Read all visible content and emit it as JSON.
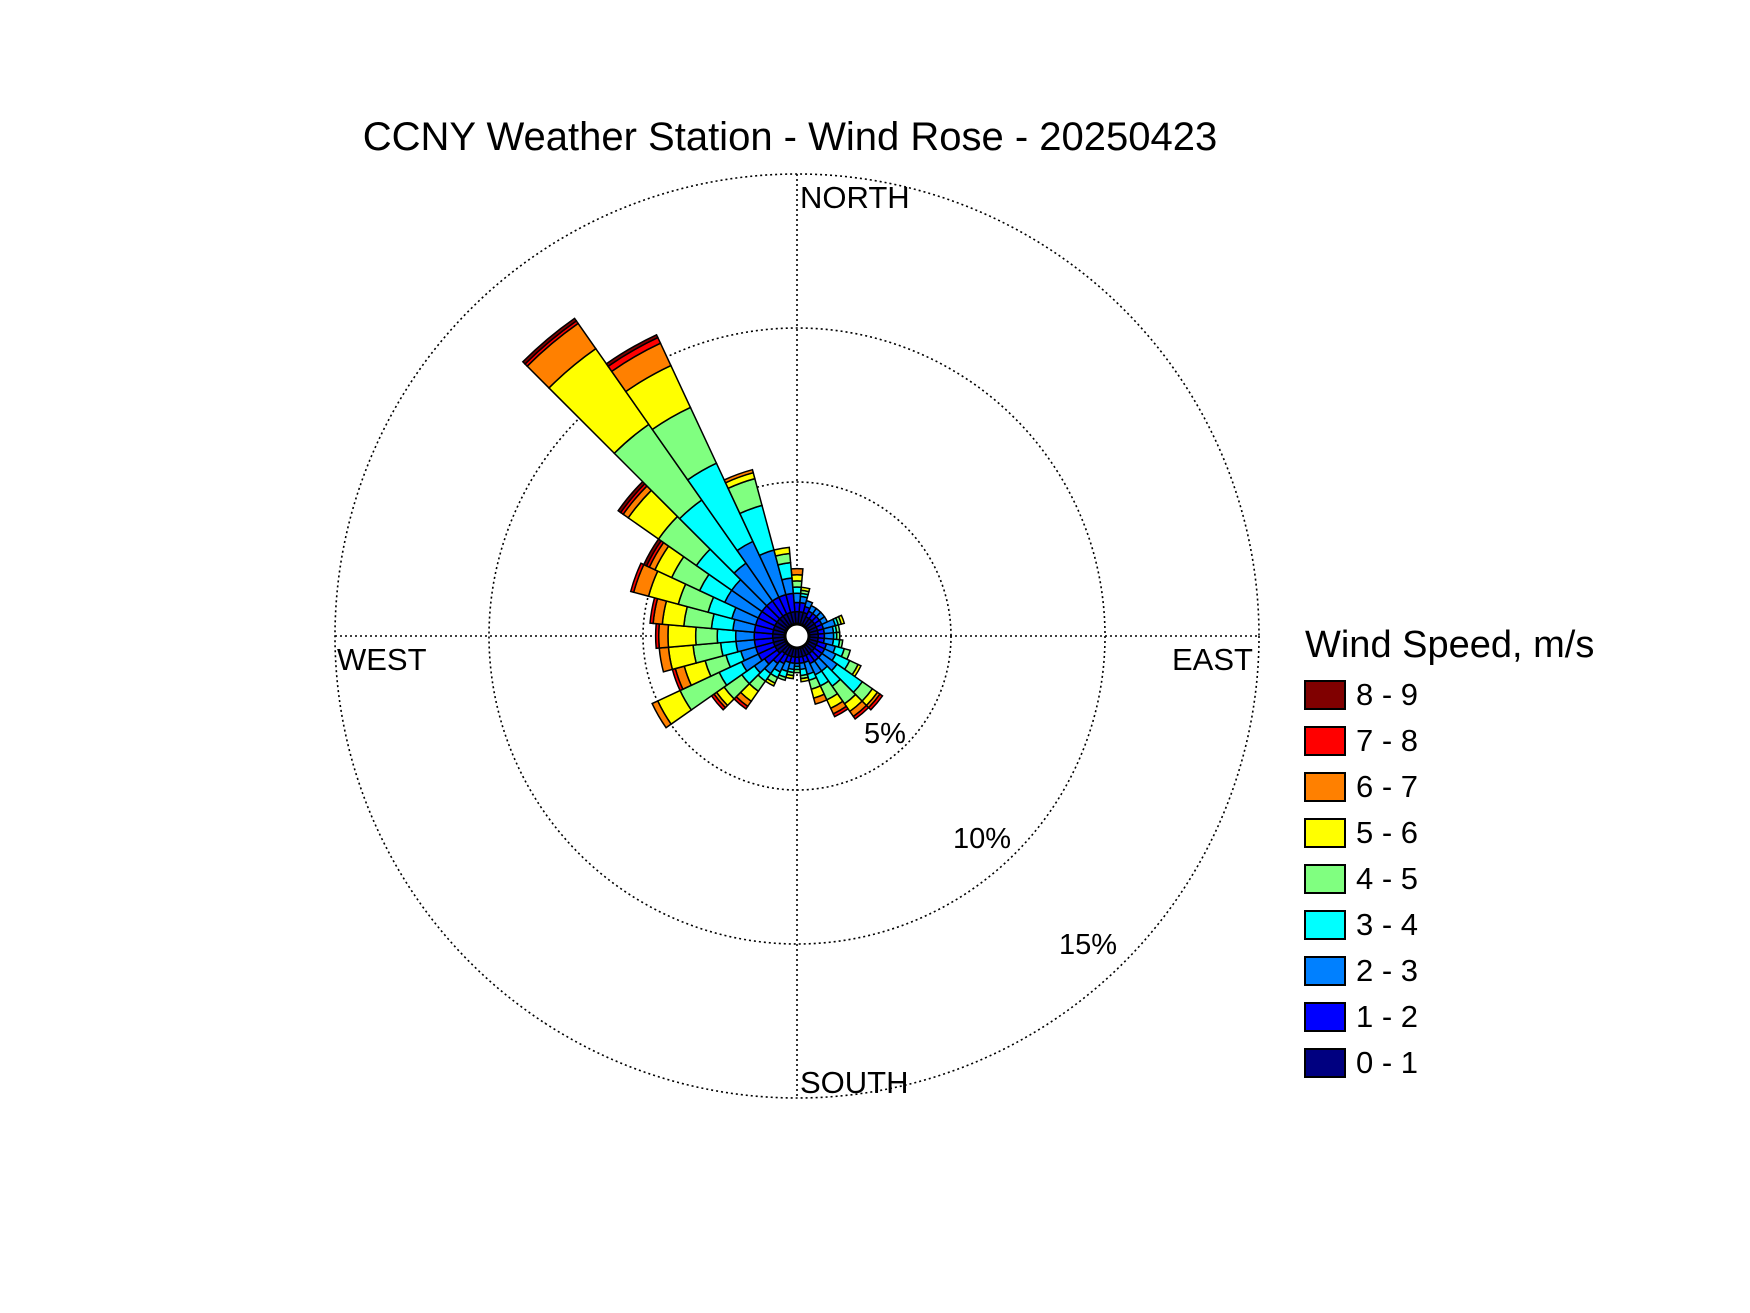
{
  "chart_data": {
    "type": "wind-rose",
    "title": "CCNY Weather Station - Wind Rose - 20250423",
    "direction_labels": {
      "north": "NORTH",
      "east": "EAST",
      "south": "SOUTH",
      "west": "WEST"
    },
    "radial_ticks": [
      {
        "value": 5,
        "label": "5%"
      },
      {
        "value": 10,
        "label": "10%"
      },
      {
        "value": 15,
        "label": "15%"
      }
    ],
    "radial_max": 15,
    "grid": true,
    "legend": {
      "title": "Wind Speed, m/s",
      "placement": "right",
      "bins": [
        {
          "label": "8 - 9",
          "color": "#800000"
        },
        {
          "label": "7 - 8",
          "color": "#ff0000"
        },
        {
          "label": "6 - 7",
          "color": "#ff8000"
        },
        {
          "label": "5 - 6",
          "color": "#ffff00"
        },
        {
          "label": "4 - 5",
          "color": "#80ff80"
        },
        {
          "label": "3 - 4",
          "color": "#00ffff"
        },
        {
          "label": "2 - 3",
          "color": "#0080ff"
        },
        {
          "label": "1 - 2",
          "color": "#0000ff"
        },
        {
          "label": "0 - 1",
          "color": "#000080"
        }
      ]
    },
    "speed_bins": [
      "0 - 1",
      "1 - 2",
      "2 - 3",
      "3 - 4",
      "4 - 5",
      "5 - 6",
      "6 - 7",
      "7 - 8",
      "8 - 9"
    ],
    "directions_deg": [
      0,
      10,
      20,
      30,
      40,
      50,
      60,
      70,
      80,
      90,
      100,
      110,
      120,
      130,
      140,
      150,
      160,
      170,
      180,
      190,
      200,
      210,
      220,
      230,
      240,
      250,
      260,
      270,
      280,
      290,
      300,
      310,
      320,
      330,
      340,
      350
    ],
    "cumulative_percent": [
      [
        0.4,
        0.7,
        1.0,
        1.2,
        1.4,
        1.6,
        1.8,
        1.8,
        1.8
      ],
      [
        0.4,
        0.7,
        0.9,
        1.0,
        1.1,
        1.2,
        1.2,
        1.2,
        1.2
      ],
      [
        0.4,
        0.6,
        0.8,
        0.8,
        0.8,
        0.8,
        0.8,
        0.8,
        0.8
      ],
      [
        0.3,
        0.5,
        0.7,
        0.7,
        0.7,
        0.7,
        0.7,
        0.7,
        0.7
      ],
      [
        0.3,
        0.5,
        0.7,
        0.7,
        0.7,
        0.7,
        0.7,
        0.7,
        0.7
      ],
      [
        0.3,
        0.5,
        0.7,
        0.7,
        0.7,
        0.7,
        0.7,
        0.7,
        0.7
      ],
      [
        0.3,
        0.5,
        0.7,
        0.7,
        0.7,
        0.7,
        0.7,
        0.7,
        0.7
      ],
      [
        0.3,
        0.5,
        0.9,
        1.0,
        1.1,
        1.2,
        1.2,
        1.2,
        1.2
      ],
      [
        0.3,
        0.5,
        0.8,
        0.9,
        1.0,
        1.0,
        1.0,
        1.0,
        1.0
      ],
      [
        0.3,
        0.5,
        0.8,
        0.9,
        1.0,
        1.0,
        1.0,
        1.0,
        1.0
      ],
      [
        0.3,
        0.5,
        0.8,
        1.0,
        1.1,
        1.1,
        1.1,
        1.1,
        1.1
      ],
      [
        0.3,
        0.6,
        0.9,
        1.2,
        1.4,
        1.4,
        1.4,
        1.4,
        1.4
      ],
      [
        0.3,
        0.6,
        1.0,
        1.5,
        1.8,
        1.9,
        1.9,
        1.9,
        1.9
      ],
      [
        0.3,
        0.6,
        1.2,
        2.2,
        2.6,
        2.8,
        2.9,
        3.0,
        3.0
      ],
      [
        0.3,
        0.6,
        1.0,
        1.6,
        2.3,
        2.6,
        2.8,
        2.9,
        2.9
      ],
      [
        0.3,
        0.6,
        1.0,
        1.4,
        1.9,
        2.2,
        2.4,
        2.5,
        2.5
      ],
      [
        0.3,
        0.5,
        0.9,
        1.1,
        1.4,
        1.7,
        1.9,
        1.9,
        1.9
      ],
      [
        0.3,
        0.5,
        0.7,
        0.9,
        1.0,
        1.1,
        1.1,
        1.1,
        1.1
      ],
      [
        0.3,
        0.5,
        0.6,
        0.7,
        0.8,
        0.8,
        0.8,
        0.8,
        0.8
      ],
      [
        0.3,
        0.5,
        0.7,
        0.8,
        0.9,
        1.0,
        1.0,
        1.0,
        1.0
      ],
      [
        0.3,
        0.5,
        0.8,
        1.0,
        1.1,
        1.1,
        1.1,
        1.1,
        1.1
      ],
      [
        0.3,
        0.6,
        0.9,
        1.1,
        1.3,
        1.4,
        1.4,
        1.4,
        1.4
      ],
      [
        0.3,
        0.7,
        1.1,
        1.4,
        1.8,
        2.2,
        2.4,
        2.5,
        2.5
      ],
      [
        0.4,
        0.9,
        1.3,
        1.8,
        2.5,
        2.8,
        2.9,
        3.0,
        3.0
      ],
      [
        0.4,
        1.0,
        1.6,
        2.4,
        3.8,
        4.6,
        4.8,
        4.8,
        4.8
      ],
      [
        0.4,
        1.0,
        1.5,
        2.0,
        2.7,
        3.4,
        3.7,
        3.8,
        3.8
      ],
      [
        0.4,
        1.0,
        1.6,
        2.1,
        3.0,
        3.8,
        4.1,
        4.1,
        4.1
      ],
      [
        0.4,
        1.0,
        1.6,
        2.2,
        2.9,
        3.8,
        4.1,
        4.2,
        4.2
      ],
      [
        0.4,
        1.0,
        1.7,
        2.4,
        3.3,
        4.0,
        4.3,
        4.4,
        4.4
      ],
      [
        0.4,
        1.0,
        1.8,
        2.6,
        3.6,
        4.6,
        5.1,
        5.2,
        5.2
      ],
      [
        0.4,
        1.0,
        2.2,
        3.1,
        4.1,
        4.7,
        4.9,
        5.0,
        5.1
      ],
      [
        0.4,
        1.0,
        2.2,
        3.6,
        5.1,
        6.3,
        6.5,
        6.6,
        6.7
      ],
      [
        0.4,
        1.0,
        2.5,
        5.0,
        8.0,
        11.0,
        12.0,
        12.1,
        12.2
      ],
      [
        0.4,
        1.0,
        3.0,
        5.8,
        7.8,
        9.3,
        10.1,
        10.3,
        10.4
      ],
      [
        0.4,
        1.0,
        2.5,
        4.0,
        4.9,
        5.1,
        5.2,
        5.2,
        5.2
      ],
      [
        0.4,
        1.0,
        1.5,
        2.0,
        2.3,
        2.5,
        2.5,
        2.5,
        2.5
      ]
    ]
  }
}
